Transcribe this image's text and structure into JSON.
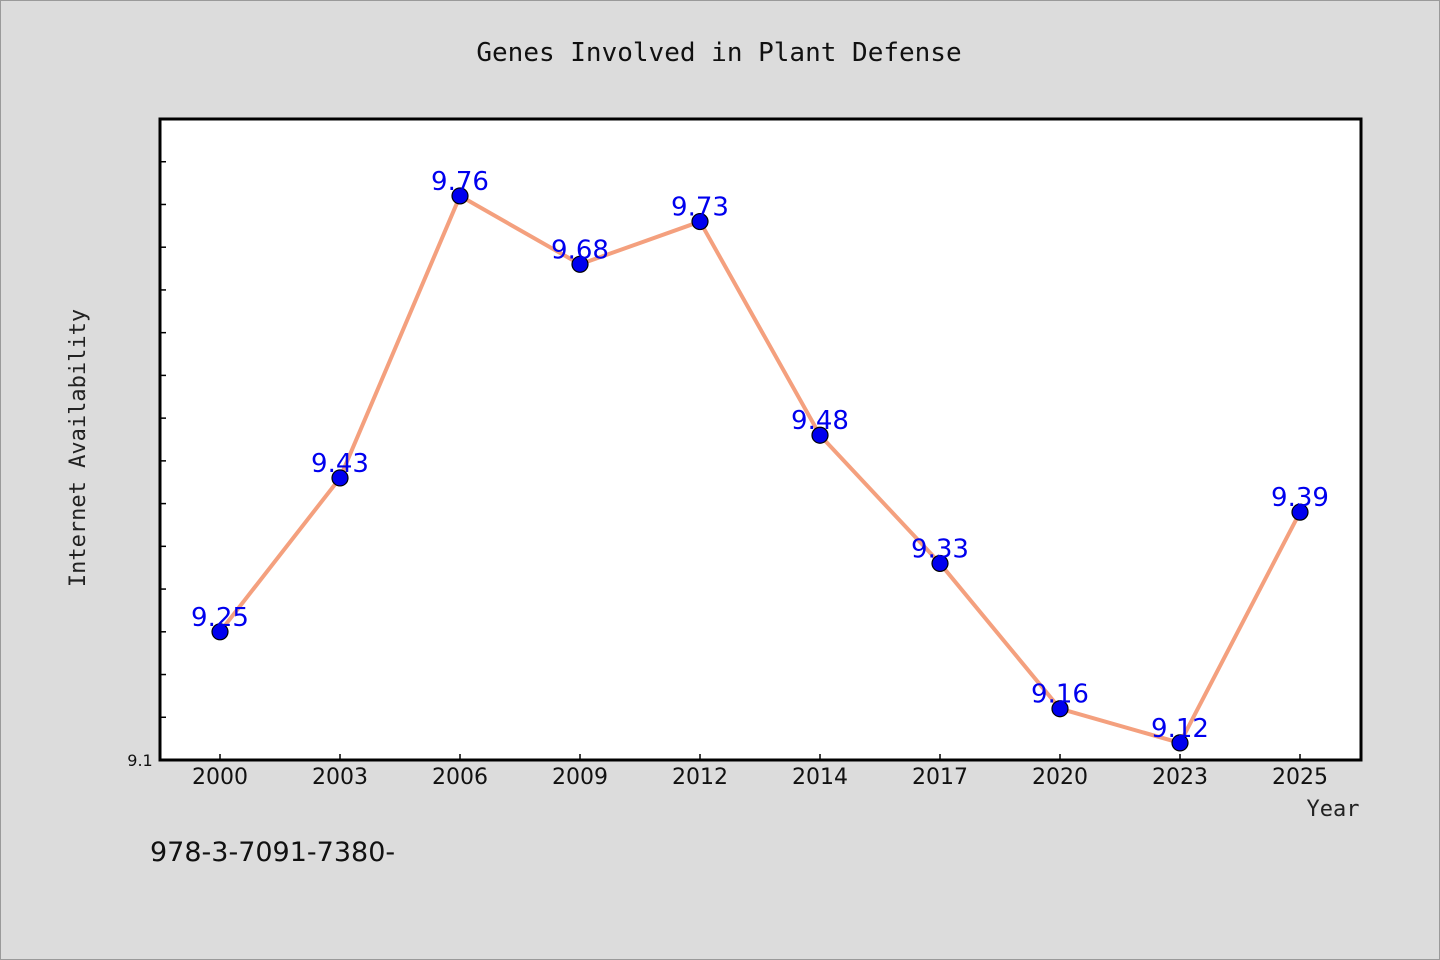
{
  "chart_data": {
    "type": "line",
    "title": "Genes Involved in Plant Defense",
    "xlabel": "Year",
    "ylabel": "Internet Availability",
    "categories": [
      "2000",
      "2003",
      "2006",
      "2009",
      "2012",
      "2014",
      "2017",
      "2020",
      "2023",
      "2025"
    ],
    "values": [
      9.25,
      9.43,
      9.76,
      9.68,
      9.73,
      9.48,
      9.33,
      9.16,
      9.12,
      9.39
    ],
    "data_labels": [
      "9.25",
      "9.43",
      "9.76",
      "9.68",
      "9.73",
      "9.48",
      "9.33",
      "9.16",
      "9.12",
      "9.39"
    ],
    "ylim": [
      9.1,
      9.85
    ],
    "y_tick_labels": [
      "9.1"
    ],
    "grid": false,
    "legend": "none",
    "colors": {
      "line": "#f4a07e",
      "marker": "#0000ee",
      "data_label": "#0000ee",
      "plot_background": "#ffffff",
      "figure_background": "#dcdcdc"
    }
  },
  "footer": {
    "isbn": "978-3-7091-7380-"
  }
}
